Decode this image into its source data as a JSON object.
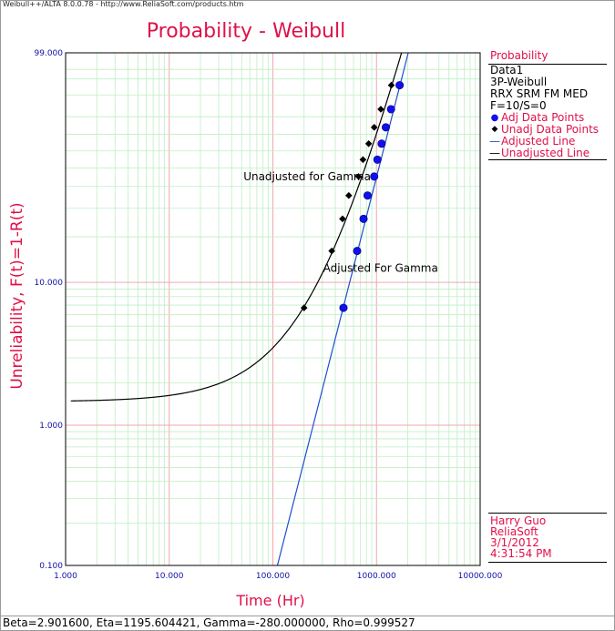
{
  "window": {
    "header": "Weibull++/ALTA 8.0.0.78 - http://www.ReliaSoft.com/products.htm"
  },
  "chart_data": {
    "type": "scatter",
    "title": "Probability - Weibull",
    "xlabel": "Time (Hr)",
    "ylabel": "Unreliability, F(t)=1-R(t)",
    "x_scale": "log",
    "y_scale": "weibull",
    "xlim": [
      1,
      10000
    ],
    "ylim": [
      0.1,
      99
    ],
    "x_ticks": [
      "1.000",
      "10.000",
      "100.000",
      "1000.000",
      "10000.000"
    ],
    "y_ticks": [
      "0.100",
      "1.000",
      "10.000",
      "99.000"
    ],
    "grid": true,
    "series": [
      {
        "name": "Adj Data Points",
        "marker": "circle",
        "color": "#1010ee",
        "x": [
          480,
          650,
          750,
          820,
          950,
          1020,
          1120,
          1230,
          1380,
          1670
        ],
        "y": [
          6.7,
          16.2,
          25.9,
          35.6,
          45.2,
          54.8,
          64.4,
          74.1,
          83.8,
          93.3
        ]
      },
      {
        "name": "Unadj Data Points",
        "marker": "diamond",
        "color": "#000000",
        "x": [
          200,
          370,
          470,
          540,
          670,
          740,
          840,
          950,
          1100,
          1390
        ],
        "y": [
          6.7,
          16.2,
          25.9,
          35.6,
          45.2,
          54.8,
          64.4,
          74.1,
          83.8,
          93.3
        ]
      },
      {
        "name": "Adjusted Line",
        "type": "line",
        "color": "#1f4fcf",
        "shape": 2.9016,
        "scale": 1195.604421,
        "location": 0
      },
      {
        "name": "Unadjusted Line",
        "type": "line",
        "color": "#000000",
        "shape": 2.9016,
        "scale": 1195.604421,
        "location": -280
      }
    ],
    "annotations": [
      "Unadjusted for Gamma",
      "Adjusted For Gamma"
    ]
  },
  "legend": {
    "title": "Probability",
    "lines": [
      "Data1",
      "3P-Weibull",
      "RRX SRM FM MED",
      "F=10/S=0"
    ],
    "items": [
      {
        "symbol": "●",
        "label": "Adj Data Points",
        "color": "#1010ee"
      },
      {
        "symbol": "◆",
        "label": "Unadj Data Points",
        "color": "#000000"
      },
      {
        "symbol": "—",
        "label": "Adjusted Line",
        "color": "#1f4fcf"
      },
      {
        "symbol": "—",
        "label": "Unadjusted Line",
        "color": "#000000"
      }
    ]
  },
  "info": {
    "user": "Harry Guo",
    "company": "ReliaSoft",
    "date": "3/1/2012",
    "time": "4:31:54 PM"
  },
  "status": {
    "text": "Beta=2.901600, Eta=1195.604421, Gamma=-280.000000, Rho=0.999527"
  }
}
